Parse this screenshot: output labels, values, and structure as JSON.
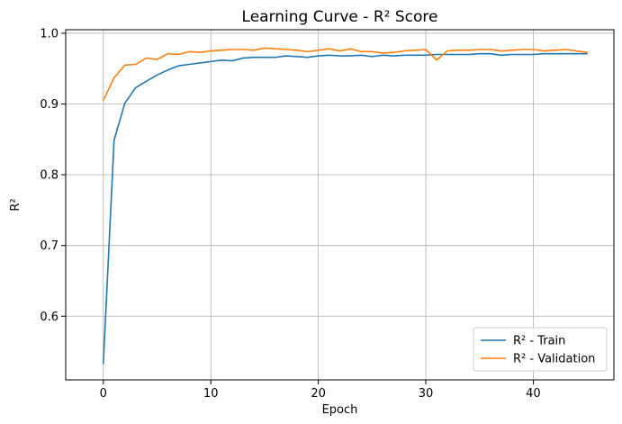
{
  "chart_data": {
    "type": "line",
    "title": "Learning Curve - R² Score",
    "xlabel": "Epoch",
    "ylabel": "R²",
    "xlim": [
      -3.5,
      47.5
    ],
    "ylim": [
      0.51,
      1.005
    ],
    "x_ticks": [
      0,
      10,
      20,
      30,
      40
    ],
    "y_ticks": [
      0.6,
      0.7,
      0.8,
      0.9,
      1.0
    ],
    "x_tick_labels": [
      "0",
      "10",
      "20",
      "30",
      "40"
    ],
    "y_tick_labels": [
      "0.6",
      "0.7",
      "0.8",
      "0.9",
      "1.0"
    ],
    "grid": true,
    "legend_position": "lower-right",
    "x": [
      0,
      1,
      2,
      3,
      4,
      5,
      6,
      7,
      8,
      9,
      10,
      11,
      12,
      13,
      14,
      15,
      16,
      17,
      18,
      19,
      20,
      21,
      22,
      23,
      24,
      25,
      26,
      27,
      28,
      29,
      30,
      31,
      32,
      33,
      34,
      35,
      36,
      37,
      38,
      39,
      40,
      41,
      42,
      43,
      44,
      45
    ],
    "series": [
      {
        "name": "R² - Train",
        "color": "#1f77b4",
        "values": [
          0.533,
          0.849,
          0.901,
          0.923,
          0.932,
          0.941,
          0.948,
          0.954,
          0.956,
          0.958,
          0.96,
          0.962,
          0.961,
          0.965,
          0.966,
          0.966,
          0.966,
          0.968,
          0.967,
          0.966,
          0.968,
          0.969,
          0.968,
          0.968,
          0.969,
          0.967,
          0.969,
          0.968,
          0.969,
          0.969,
          0.969,
          0.97,
          0.97,
          0.97,
          0.97,
          0.971,
          0.971,
          0.969,
          0.97,
          0.97,
          0.97,
          0.971,
          0.971,
          0.971,
          0.971,
          0.971
        ]
      },
      {
        "name": "R² - Validation",
        "color": "#ff7f0e",
        "values": [
          0.905,
          0.937,
          0.955,
          0.956,
          0.965,
          0.963,
          0.971,
          0.97,
          0.974,
          0.973,
          0.975,
          0.976,
          0.977,
          0.977,
          0.976,
          0.979,
          0.978,
          0.977,
          0.976,
          0.974,
          0.976,
          0.978,
          0.975,
          0.978,
          0.974,
          0.974,
          0.972,
          0.973,
          0.975,
          0.976,
          0.977,
          0.962,
          0.975,
          0.976,
          0.976,
          0.977,
          0.977,
          0.975,
          0.976,
          0.977,
          0.977,
          0.975,
          0.976,
          0.977,
          0.975,
          0.973
        ]
      }
    ]
  }
}
